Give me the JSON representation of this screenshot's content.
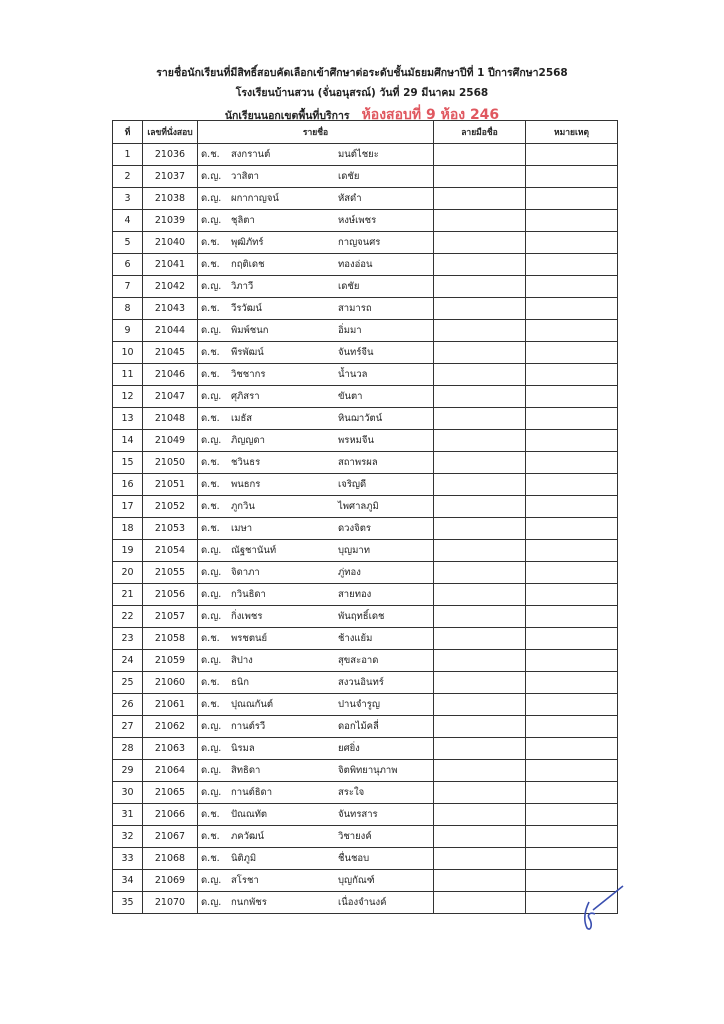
{
  "header": {
    "line1": "รายชื่อนักเรียนที่มีสิทธิ์สอบคัดเลือกเข้าศึกษาต่อระดับชั้นมัธยมศึกษาปีที่ 1 ปีการศึกษา2568",
    "line2": "โรงเรียนบ้านสวน (จั่นอนุสรณ์)  วันที่ 29 มีนาคม 2568",
    "line3": "นักเรียนนอกเขตพื้นที่บริการ",
    "room": "ห้องสอบที่ 9  ห้อง 246",
    "room_color": "#e0575f"
  },
  "columns": [
    "ที่",
    "เลขที่นั่งสอบ",
    "รายชื่อ",
    "ลายมือชื่อ",
    "หมายเหตุ"
  ],
  "rows": [
    {
      "no": "1",
      "seat": "21036",
      "prefix": "ด.ช.",
      "first": "สงกรานต์",
      "last": "มนต์ไชยะ"
    },
    {
      "no": "2",
      "seat": "21037",
      "prefix": "ด.ญ.",
      "first": "วาสิตา",
      "last": "เดชัย"
    },
    {
      "no": "3",
      "seat": "21038",
      "prefix": "ด.ญ.",
      "first": "ผกากาญจน์",
      "last": "หัสดำ"
    },
    {
      "no": "4",
      "seat": "21039",
      "prefix": "ด.ญ.",
      "first": "ชุลิตา",
      "last": "หงษ์เพชร"
    },
    {
      "no": "5",
      "seat": "21040",
      "prefix": "ด.ช.",
      "first": "พุฒิภัทร์",
      "last": "กาญจนศร"
    },
    {
      "no": "6",
      "seat": "21041",
      "prefix": "ด.ช.",
      "first": "กฤติเดช",
      "last": "ทองอ่อน"
    },
    {
      "no": "7",
      "seat": "21042",
      "prefix": "ด.ญ.",
      "first": "วิภาวี",
      "last": "เดชัย"
    },
    {
      "no": "8",
      "seat": "21043",
      "prefix": "ด.ช.",
      "first": "วีรวัฒน์",
      "last": "สามารถ"
    },
    {
      "no": "9",
      "seat": "21044",
      "prefix": "ด.ญ.",
      "first": "พิมพ์ชนก",
      "last": "อิ่มมา"
    },
    {
      "no": "10",
      "seat": "21045",
      "prefix": "ด.ช.",
      "first": "พีรพัฒน์",
      "last": "จันทร์จีน"
    },
    {
      "no": "11",
      "seat": "21046",
      "prefix": "ด.ช.",
      "first": "วิชชากร",
      "last": "น้ำนวล"
    },
    {
      "no": "12",
      "seat": "21047",
      "prefix": "ด.ญ.",
      "first": "ศุภิสรา",
      "last": "ขันตา"
    },
    {
      "no": "13",
      "seat": "21048",
      "prefix": "ด.ช.",
      "first": "เมธัส",
      "last": "หินฌาวัตน์"
    },
    {
      "no": "14",
      "seat": "21049",
      "prefix": "ด.ญ.",
      "first": "ภิญญดา",
      "last": "พรหมจีน"
    },
    {
      "no": "15",
      "seat": "21050",
      "prefix": "ด.ช.",
      "first": "ชวินธร",
      "last": "สถาพรผล"
    },
    {
      "no": "16",
      "seat": "21051",
      "prefix": "ด.ช.",
      "first": "พนธกร",
      "last": "เจริญดี"
    },
    {
      "no": "17",
      "seat": "21052",
      "prefix": "ด.ช.",
      "first": "ภูกวิน",
      "last": "ไพศาลภูมิ"
    },
    {
      "no": "18",
      "seat": "21053",
      "prefix": "ด.ช.",
      "first": "เมษา",
      "last": "ดวงจิตร"
    },
    {
      "no": "19",
      "seat": "21054",
      "prefix": "ด.ญ.",
      "first": "ณัฐชานันท์",
      "last": "บุญมาท"
    },
    {
      "no": "20",
      "seat": "21055",
      "prefix": "ด.ญ.",
      "first": "จิดาภา",
      "last": "ภู่ทอง"
    },
    {
      "no": "21",
      "seat": "21056",
      "prefix": "ด.ญ.",
      "first": "กวินธิดา",
      "last": "สายทอง"
    },
    {
      "no": "22",
      "seat": "21057",
      "prefix": "ด.ญ.",
      "first": "กิ่งเพชร",
      "last": "พันฤทธิ์เดช"
    },
    {
      "no": "23",
      "seat": "21058",
      "prefix": "ด.ช.",
      "first": "พรชตนย์",
      "last": "ช้างแย้ม"
    },
    {
      "no": "24",
      "seat": "21059",
      "prefix": "ด.ญ.",
      "first": "สิปาง",
      "last": "สุขสะอาด"
    },
    {
      "no": "25",
      "seat": "21060",
      "prefix": "ด.ช.",
      "first": "ธนิก",
      "last": "สงวนอินทร์"
    },
    {
      "no": "26",
      "seat": "21061",
      "prefix": "ด.ช.",
      "first": "ปุณณกันต์",
      "last": "ปานจำรูญ"
    },
    {
      "no": "27",
      "seat": "21062",
      "prefix": "ด.ญ.",
      "first": "กานต์รวี",
      "last": "ดอกไม้คลี่"
    },
    {
      "no": "28",
      "seat": "21063",
      "prefix": "ด.ญ.",
      "first": "นิรมล",
      "last": "ยศยิ่ง"
    },
    {
      "no": "29",
      "seat": "21064",
      "prefix": "ด.ญ.",
      "first": "สิทธิดา",
      "last": "จิตพิทยานุภาพ"
    },
    {
      "no": "30",
      "seat": "21065",
      "prefix": "ด.ญ.",
      "first": "กานต์ธิดา",
      "last": "สระใจ"
    },
    {
      "no": "31",
      "seat": "21066",
      "prefix": "ด.ช.",
      "first": "ปัณณทัต",
      "last": "จันทรสาร"
    },
    {
      "no": "32",
      "seat": "21067",
      "prefix": "ด.ช.",
      "first": "ภควัฒน์",
      "last": "วิชายงค์"
    },
    {
      "no": "33",
      "seat": "21068",
      "prefix": "ด.ช.",
      "first": "นิติภูมิ",
      "last": "ชื่นชอบ"
    },
    {
      "no": "34",
      "seat": "21069",
      "prefix": "ด.ญ.",
      "first": "สโรชา",
      "last": "บุญกัณฑ์"
    },
    {
      "no": "35",
      "seat": "21070",
      "prefix": "ด.ญ.",
      "first": "กนกพัชร",
      "last": "เนื่องจำนงค์"
    }
  ]
}
